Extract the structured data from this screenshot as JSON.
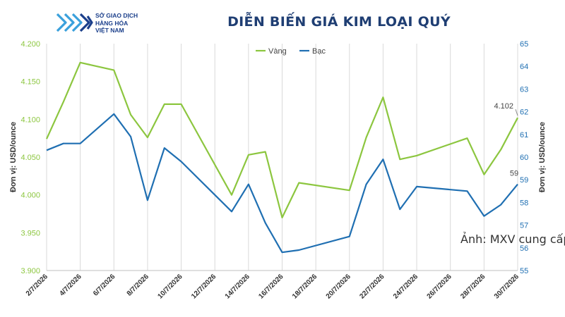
{
  "header": {
    "logo_lines": [
      "SỞ GIAO DỊCH",
      "HÀNG HÓA",
      "VIỆT NAM"
    ],
    "title": "DIỄN BIẾN GIÁ KIM LOẠI QUÝ"
  },
  "credit": "Ảnh: MXV cung cấp",
  "colors": {
    "gold": "#8cc63f",
    "silver": "#1f6fb2",
    "grid": "#d9d9d9"
  },
  "chart_data": {
    "type": "line",
    "title": "DIỄN BIẾN GIÁ KIM LOẠI QUÝ",
    "x": [
      "2/7/2026",
      "3/7/2026",
      "4/7/2026",
      "6/7/2026",
      "7/7/2026",
      "8/7/2026",
      "9/7/2026",
      "10/7/2026",
      "13/7/2026",
      "14/7/2026",
      "15/7/2026",
      "16/7/2026",
      "17/7/2026",
      "20/7/2026",
      "21/7/2026",
      "22/7/2026",
      "23/7/2026",
      "24/7/2026",
      "27/7/2026",
      "28/7/2026",
      "29/7/2026",
      "30/7/2026"
    ],
    "x_tick_labels": [
      "2/7/2026",
      "4/7/2026",
      "6/7/2026",
      "8/7/2026",
      "10/7/2026",
      "12/7/2026",
      "14/7/2026",
      "16/7/2026",
      "18/7/2026",
      "20/7/2026",
      "22/7/2026",
      "24/7/2026",
      "26/7/2026",
      "28/7/2026",
      "30/7/2026"
    ],
    "x_range": [
      "2/7/2026",
      "30/7/2026"
    ],
    "series": [
      {
        "name": "Vàng",
        "axis": "left",
        "color": "#8cc63f",
        "values": [
          4074,
          4123,
          4175,
          4165,
          4106,
          4076,
          4120,
          4120,
          4000,
          4053,
          4057,
          3970,
          4016,
          4006,
          4076,
          4129,
          4047,
          4052,
          4075,
          4027,
          4060,
          4102
        ]
      },
      {
        "name": "Bạc",
        "axis": "right",
        "color": "#1f6fb2",
        "values": [
          60.3,
          60.6,
          60.6,
          61.9,
          60.9,
          58.1,
          60.4,
          59.8,
          57.6,
          58.8,
          57.1,
          55.8,
          55.9,
          56.5,
          58.8,
          59.9,
          57.7,
          58.7,
          58.5,
          57.4,
          57.9,
          58.8
        ]
      }
    ],
    "ylabel": "Đơn vị: USD/ounce",
    "ylabel_right": "Đơn vị: USD/ounce",
    "ylim": [
      3900,
      4200
    ],
    "ylim_right": [
      55,
      65
    ],
    "y_ticks": [
      "3.900",
      "3.950",
      "4.000",
      "4.050",
      "4.100",
      "4.150",
      "4.200"
    ],
    "y_ticks_right": [
      "55",
      "56",
      "57",
      "58",
      "59",
      "60",
      "61",
      "62",
      "63",
      "64",
      "65"
    ],
    "annotations": [
      {
        "series": "Vàng",
        "x": "30/7/2026",
        "text": "4.102"
      },
      {
        "series": "Bạc",
        "x": "30/7/2026",
        "text": "59"
      }
    ],
    "grid": "vertical",
    "legend": "top-center"
  }
}
